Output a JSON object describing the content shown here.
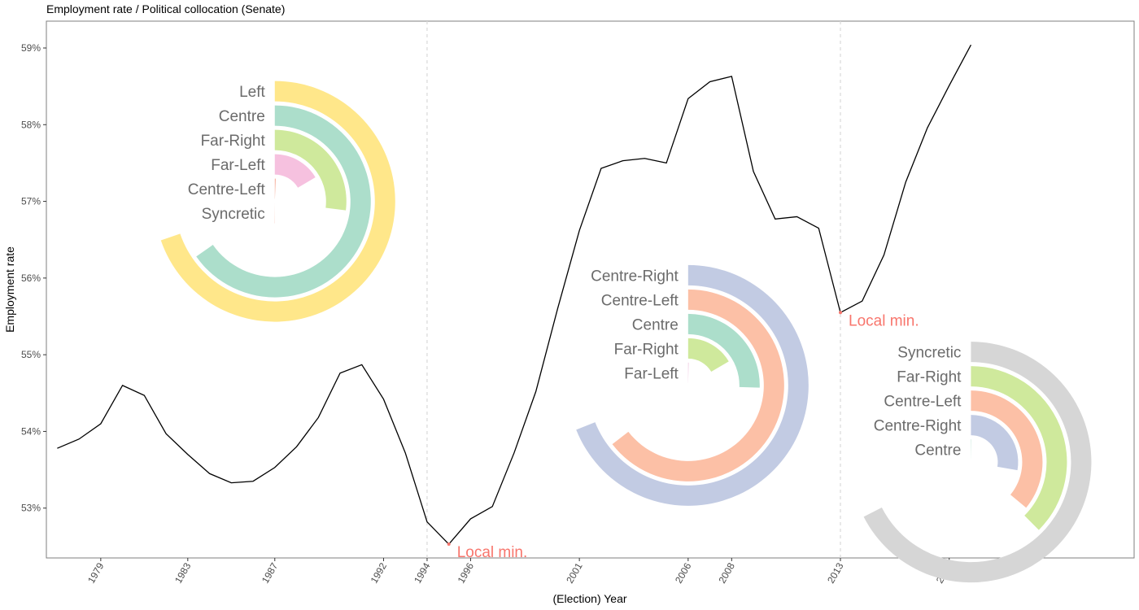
{
  "chart_data": {
    "type": "line",
    "title": "Employment rate / Political collocation (Senate)",
    "xlabel": "(Election) Year",
    "ylabel": "Employment rate",
    "xlim": [
      1976.5,
      2026.5
    ],
    "ylim": [
      52.35,
      59.35
    ],
    "x_ticks": [
      1979,
      1983,
      1987,
      1992,
      1994,
      1996,
      2001,
      2006,
      2008,
      2013,
      2018
    ],
    "y_ticks": [
      53,
      54,
      55,
      56,
      57,
      58,
      59
    ],
    "y_tick_suffix": "%",
    "grid": false,
    "election_lines": [
      1994,
      2013
    ],
    "series": [
      {
        "x": [
          1977,
          1978,
          1979,
          1980,
          1981,
          1982,
          1983,
          1984,
          1985,
          1986,
          1987,
          1988,
          1989,
          1990,
          1991,
          1992,
          1993,
          1994,
          1995,
          1996,
          1997,
          1998,
          1999,
          2000,
          2001,
          2002,
          2003,
          2004,
          2005,
          2006,
          2007,
          2008,
          2009,
          2010,
          2011,
          2012,
          2013,
          2014,
          2015,
          2016,
          2017,
          2018,
          2019
        ],
        "y": [
          53.78,
          53.9,
          54.1,
          54.6,
          54.47,
          53.97,
          53.7,
          53.45,
          53.33,
          53.35,
          53.53,
          53.8,
          54.18,
          54.76,
          54.87,
          54.42,
          53.72,
          52.82,
          52.53,
          52.86,
          53.02,
          53.72,
          54.52,
          55.6,
          56.62,
          57.43,
          57.53,
          57.56,
          57.5,
          58.34,
          58.56,
          58.63,
          57.39,
          56.77,
          56.8,
          56.65,
          55.55,
          55.7,
          56.3,
          57.25,
          57.96,
          58.51,
          59.04
        ]
      }
    ],
    "annotations": [
      {
        "x": 1995,
        "y": 52.53,
        "label": "Local min."
      },
      {
        "x": 2013,
        "y": 55.55,
        "label": "Local min."
      }
    ],
    "radial_bars": [
      {
        "anchor_year": 1987,
        "anchor_value": 57.0,
        "bars": [
          {
            "label": "Left",
            "value": 0.93,
            "color": "#ffe78a"
          },
          {
            "label": "Centre",
            "value": 0.87,
            "color": "#acdecb"
          },
          {
            "label": "Far-Right",
            "value": 0.36,
            "color": "#cfe99c"
          },
          {
            "label": "Far-Left",
            "value": 0.22,
            "color": "#f6c1df"
          },
          {
            "label": "Centre-Left",
            "value": 0.01,
            "color": "#f7b7a6"
          },
          {
            "label": "Syncretic",
            "value": 0.002,
            "color": "#f7b7a6"
          }
        ]
      },
      {
        "anchor_year": 2006,
        "anchor_value": 54.6,
        "bars": [
          {
            "label": "Centre-Right",
            "value": 0.92,
            "color": "#c2cbe3"
          },
          {
            "label": "Centre-Left",
            "value": 0.86,
            "color": "#fcc0a6"
          },
          {
            "label": "Centre",
            "value": 0.34,
            "color": "#acdecb"
          },
          {
            "label": "Far-Right",
            "value": 0.22,
            "color": "#cfe99c"
          },
          {
            "label": "Far-Left",
            "value": 0.004,
            "color": "#e8a9d0"
          }
        ]
      },
      {
        "anchor_year": 2019,
        "anchor_value": 53.6,
        "bars": [
          {
            "label": "Syncretic",
            "value": 0.9,
            "color": "#d6d6d6"
          },
          {
            "label": "Far-Right",
            "value": 0.5,
            "color": "#cfe99c"
          },
          {
            "label": "Centre-Left",
            "value": 0.48,
            "color": "#fcc0a6"
          },
          {
            "label": "Centre-Right",
            "value": 0.37,
            "color": "#c2cbe3"
          },
          {
            "label": "Centre",
            "value": 0.003,
            "color": "#acdecb"
          }
        ]
      }
    ],
    "colors": {
      "line": "#000000",
      "annotation": "#f8766d",
      "panel_border": "#7f7f7f",
      "vline": "#d9d9d9"
    }
  }
}
